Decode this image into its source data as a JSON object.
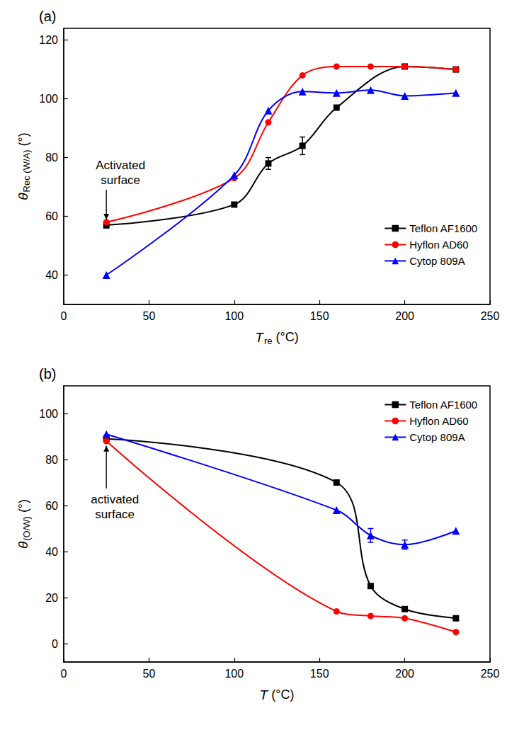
{
  "chart_data": [
    {
      "type": "line",
      "title": "(a)",
      "xlabel": {
        "main": "T",
        "sub": "re",
        "rest": "(°C)"
      },
      "ylabel": {
        "main": "θ",
        "sub": "Rec (W/A)",
        "rest": "(°)"
      },
      "xlim": [
        0,
        250
      ],
      "xticks": [
        0,
        50,
        100,
        150,
        200,
        250
      ],
      "ylim": [
        30,
        124
      ],
      "yticks": [
        40,
        60,
        80,
        100,
        120
      ],
      "grid": false,
      "legend": "lower right",
      "annotation": "Activated surface",
      "series": [
        {
          "name": "Teflon AF1600",
          "color": "#000000",
          "marker": "square",
          "line_style": "solid",
          "x": [
            25,
            100,
            120,
            140,
            160,
            200,
            230
          ],
          "values": [
            57,
            64,
            78,
            84,
            97,
            111,
            110
          ],
          "errors": [
            1,
            null,
            2,
            3,
            null,
            null,
            null
          ]
        },
        {
          "name": "Hyflon AD60",
          "color": "#ff0000",
          "marker": "circle",
          "line_style": "solid",
          "x": [
            25,
            100,
            120,
            140,
            160,
            180,
            200,
            230
          ],
          "values": [
            58,
            73,
            92,
            108,
            111,
            111,
            111,
            110
          ]
        },
        {
          "name": "Cytop 809A",
          "color": "#0000ff",
          "marker": "triangle",
          "line_style": "solid",
          "x": [
            25,
            100,
            120,
            140,
            160,
            180,
            200,
            230
          ],
          "values": [
            40,
            74,
            96,
            102.5,
            102,
            103,
            101,
            102
          ]
        }
      ]
    },
    {
      "type": "line",
      "title": "(b)",
      "xlabel": {
        "main": "T",
        "rest": "(°C)"
      },
      "ylabel": {
        "main": "θ",
        "sub": "(O/W)",
        "rest": "(°)"
      },
      "xlim": [
        0,
        250
      ],
      "xticks": [
        0,
        50,
        100,
        150,
        200,
        250
      ],
      "ylim": [
        -8,
        112
      ],
      "yticks": [
        0,
        20,
        40,
        60,
        80,
        100
      ],
      "grid": false,
      "legend": "upper right",
      "annotation": "activated surface",
      "series": [
        {
          "name": "Teflon AF1600",
          "color": "#000000",
          "marker": "square",
          "line_style": "solid",
          "x": [
            25,
            160,
            180,
            200,
            230
          ],
          "values": [
            89,
            70,
            25,
            15,
            11
          ]
        },
        {
          "name": "Hyflon AD60",
          "color": "#ff0000",
          "marker": "circle",
          "line_style": "solid",
          "x": [
            25,
            160,
            180,
            200,
            230
          ],
          "values": [
            88,
            14,
            12,
            11,
            5
          ]
        },
        {
          "name": "Cytop 809A",
          "color": "#0000ff",
          "marker": "triangle",
          "line_style": "solid",
          "x": [
            25,
            160,
            180,
            200,
            230
          ],
          "values": [
            91,
            58,
            47,
            43,
            49
          ],
          "errors": [
            null,
            null,
            3,
            2,
            null
          ]
        }
      ]
    }
  ]
}
